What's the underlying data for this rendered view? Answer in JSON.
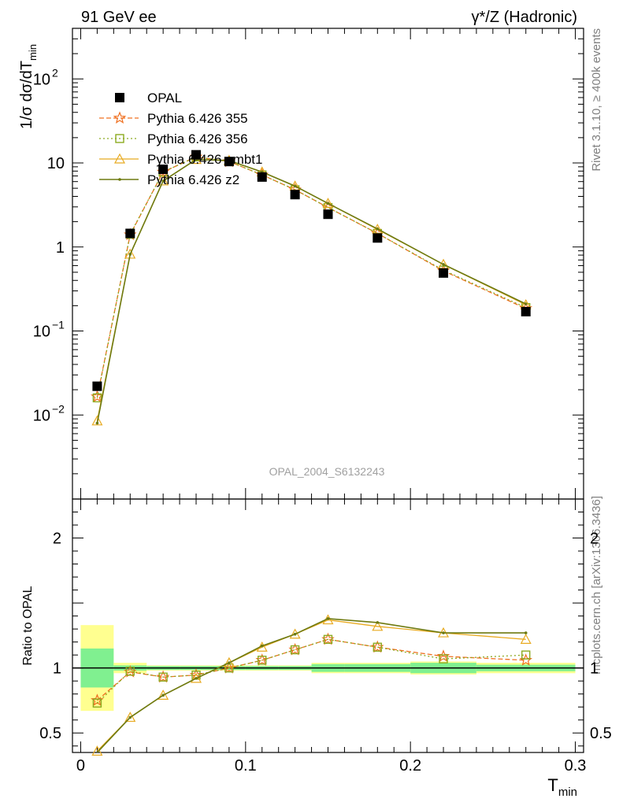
{
  "header": {
    "left": "91 GeV ee",
    "right": "γ*/Z (Hadronic)"
  },
  "side_text": {
    "rivet": "Rivet 3.1.10, ≥ 400k events",
    "mcplots": "mcplots.cern.ch [arXiv:1306.3436]"
  },
  "watermark": "OPAL_2004_S6132243",
  "colors": {
    "data": "#000000",
    "p355": "#f07020",
    "p356": "#8caa20",
    "ambt1": "#e8aa20",
    "z2": "#6e7a10",
    "band_inner": "#80f090",
    "band_outer": "#ffff90"
  },
  "chart_data": [
    {
      "type": "line",
      "scale": "log",
      "ylabel": "1/σ dσ/dT_min",
      "ylim": [
        0.001,
        400
      ],
      "xlim": [
        -0.005,
        0.305
      ],
      "yticks": [
        {
          "value": 0.01,
          "label": "10",
          "exp": "−2"
        },
        {
          "value": 0.1,
          "label": "10",
          "exp": "−1"
        },
        {
          "value": 1,
          "label": "1",
          "exp": ""
        },
        {
          "value": 10,
          "label": "10",
          "exp": ""
        },
        {
          "value": 100,
          "label": "10",
          "exp": "2"
        }
      ],
      "x": [
        0.01,
        0.03,
        0.05,
        0.07,
        0.09,
        0.11,
        0.13,
        0.15,
        0.18,
        0.22,
        0.27
      ],
      "series": [
        {
          "name": "OPAL",
          "key": "data",
          "values": [
            0.022,
            1.45,
            8.4,
            12.5,
            10.4,
            6.8,
            4.2,
            2.45,
            1.28,
            0.49,
            0.17
          ]
        },
        {
          "name": "Pythia 6.426 355",
          "key": "p355",
          "values": [
            0.0165,
            1.4,
            7.8,
            11.8,
            10.4,
            7.2,
            4.8,
            2.95,
            1.45,
            0.52,
            0.185
          ]
        },
        {
          "name": "Pythia 6.426 356",
          "key": "p356",
          "values": [
            0.016,
            1.42,
            7.8,
            11.8,
            10.4,
            7.2,
            4.8,
            2.95,
            1.45,
            0.53,
            0.19
          ]
        },
        {
          "name": "Pythia 6.426 ambt1",
          "key": "ambt1",
          "values": [
            0.0085,
            0.82,
            6.1,
            11.0,
            10.7,
            7.8,
            5.3,
            3.3,
            1.62,
            0.62,
            0.205
          ]
        },
        {
          "name": "Pythia 6.426 z2",
          "key": "z2",
          "values": [
            0.008,
            0.82,
            6.1,
            11.0,
            10.7,
            7.8,
            5.3,
            3.3,
            1.64,
            0.62,
            0.21
          ]
        }
      ]
    },
    {
      "type": "line",
      "ylabel": "Ratio to OPAL",
      "xlabel": "T_min",
      "ylim": [
        0.35,
        2.3
      ],
      "xlim": [
        -0.005,
        0.305
      ],
      "yticks": [
        0.5,
        1,
        2
      ],
      "ytick_labels": [
        "0.5",
        "1",
        "2"
      ],
      "xticks": [
        0,
        0.1,
        0.2,
        0.3
      ],
      "xtick_labels": [
        "0",
        "0.1",
        "0.2",
        "0.3"
      ],
      "x": [
        0.01,
        0.03,
        0.05,
        0.07,
        0.09,
        0.11,
        0.13,
        0.15,
        0.18,
        0.22,
        0.27
      ],
      "bin_edges": [
        0.0,
        0.02,
        0.04,
        0.06,
        0.08,
        0.1,
        0.12,
        0.14,
        0.16,
        0.2,
        0.24,
        0.3
      ],
      "band_inner": [
        0.15,
        0.02,
        0.015,
        0.015,
        0.015,
        0.015,
        0.015,
        0.03,
        0.03,
        0.04,
        0.025
      ],
      "band_outer": [
        0.33,
        0.04,
        0.02,
        0.02,
        0.02,
        0.02,
        0.02,
        0.04,
        0.04,
        0.05,
        0.04
      ],
      "series": [
        {
          "name": "Pythia 6.426 355",
          "key": "p355",
          "values": [
            0.75,
            0.97,
            0.93,
            0.945,
            1.0,
            1.06,
            1.14,
            1.22,
            1.16,
            1.09,
            1.06
          ]
        },
        {
          "name": "Pythia 6.426 356",
          "key": "p356",
          "values": [
            0.73,
            0.975,
            0.93,
            0.945,
            1.0,
            1.06,
            1.14,
            1.22,
            1.16,
            1.07,
            1.1
          ]
        },
        {
          "name": "Pythia 6.426 ambt1",
          "key": "ambt1",
          "values": [
            0.36,
            0.62,
            0.79,
            0.92,
            1.04,
            1.16,
            1.26,
            1.37,
            1.32,
            1.27,
            1.22
          ]
        },
        {
          "name": "Pythia 6.426 z2",
          "key": "z2",
          "values": [
            0.33,
            0.62,
            0.79,
            0.92,
            1.04,
            1.17,
            1.26,
            1.38,
            1.35,
            1.27,
            1.27
          ]
        }
      ]
    }
  ]
}
